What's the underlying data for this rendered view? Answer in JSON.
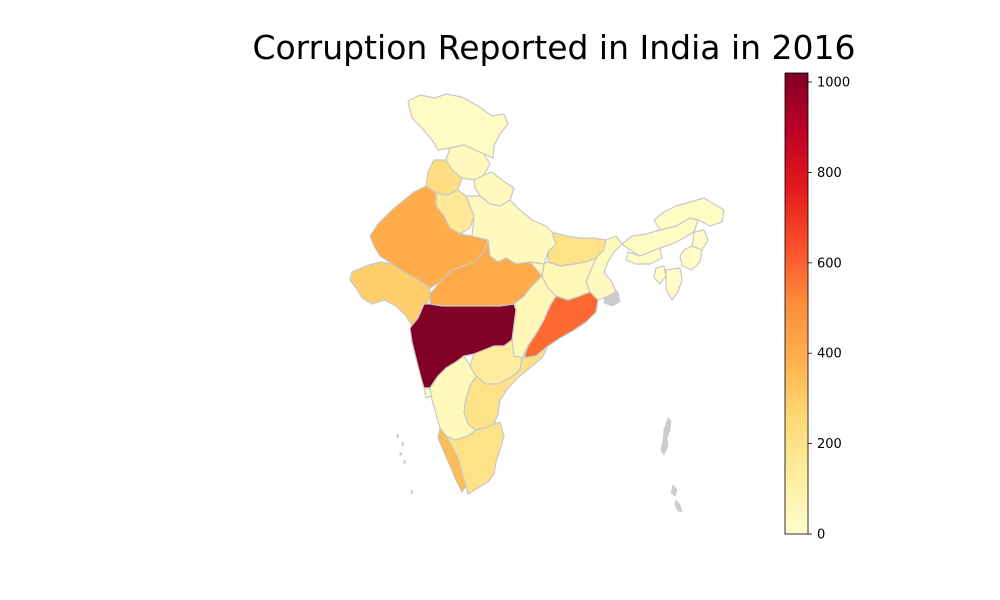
{
  "title": "Corruption Reported in India in 2016",
  "colorbar": {
    "min": 0,
    "max": 1020,
    "ticks": [
      0,
      200,
      400,
      600,
      800,
      1000
    ],
    "colormap": "YlOrRd",
    "stops": [
      "#ffffcc",
      "#ffeda0",
      "#fed976",
      "#feb24c",
      "#fd8d3c",
      "#fc4e2a",
      "#e31a1c",
      "#bd0026",
      "#800026"
    ]
  },
  "border_color": "#c8c8c8",
  "no_data_color": "#cccccc",
  "regions": [
    {
      "name": "Jammu and Kashmir",
      "value": 30
    },
    {
      "name": "Himachal Pradesh",
      "value": 40
    },
    {
      "name": "Punjab",
      "value": 220
    },
    {
      "name": "Haryana",
      "value": 150
    },
    {
      "name": "Uttarakhand",
      "value": 40
    },
    {
      "name": "Uttar Pradesh",
      "value": 40
    },
    {
      "name": "Rajasthan",
      "value": 400
    },
    {
      "name": "Gujarat",
      "value": 290
    },
    {
      "name": "Madhya Pradesh",
      "value": 410
    },
    {
      "name": "Bihar",
      "value": 200
    },
    {
      "name": "Jharkhand",
      "value": 60
    },
    {
      "name": "West Bengal",
      "value": 40
    },
    {
      "name": "Chhattisgarh",
      "value": 60
    },
    {
      "name": "Odisha",
      "value": 580
    },
    {
      "name": "Maharashtra",
      "value": 1020
    },
    {
      "name": "Telangana",
      "value": 140
    },
    {
      "name": "Andhra Pradesh",
      "value": 200
    },
    {
      "name": "Karnataka",
      "value": 50
    },
    {
      "name": "Goa",
      "value": 20
    },
    {
      "name": "Kerala",
      "value": 350
    },
    {
      "name": "Tamil Nadu",
      "value": 200
    },
    {
      "name": "Arunachal Pradesh",
      "value": 20
    },
    {
      "name": "Assam",
      "value": 30
    },
    {
      "name": "Meghalaya",
      "value": 20
    },
    {
      "name": "Nagaland",
      "value": 20
    },
    {
      "name": "Manipur",
      "value": 20
    },
    {
      "name": "Mizoram",
      "value": 20
    },
    {
      "name": "Tripura",
      "value": 20
    }
  ]
}
